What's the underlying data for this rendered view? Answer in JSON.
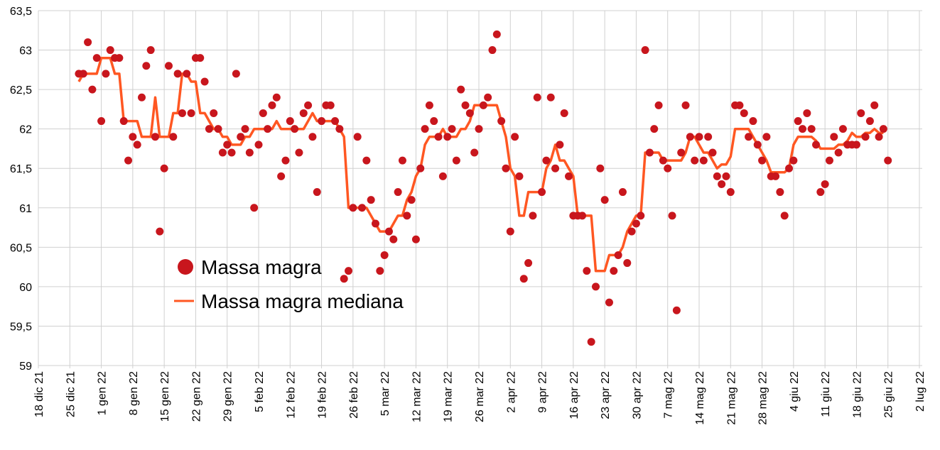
{
  "chart_data": {
    "type": "scatter",
    "title": "",
    "xlabel": "",
    "ylabel": "",
    "x_unit": "days since 18 dic 21",
    "xlim": [
      0,
      196
    ],
    "ylim": [
      59,
      63.5
    ],
    "grid": true,
    "legend_placement": "center-left",
    "y_ticks": [
      "59",
      "59,5",
      "60",
      "60,5",
      "61",
      "61,5",
      "62",
      "62,5",
      "63",
      "63,5"
    ],
    "y_tick_values": [
      59,
      59.5,
      60,
      60.5,
      61,
      61.5,
      62,
      62.5,
      63,
      63.5
    ],
    "x_ticks": [
      "18 dic 21",
      "25 dic 21",
      "1 gen 22",
      "8 gen 22",
      "15 gen 22",
      "22 gen 22",
      "29 gen 22",
      "5 feb 22",
      "12 feb 22",
      "19 feb 22",
      "26 feb 22",
      "5 mar 22",
      "12 mar 22",
      "19 mar 22",
      "26 mar 22",
      "2 apr 22",
      "9 apr 22",
      "16 apr 22",
      "23 apr 22",
      "30 apr 22",
      "7 mag 22",
      "14 mag 22",
      "21 mag 22",
      "28 mag 22",
      "4 giu 22",
      "11 giu 22",
      "18 giu 22",
      "25 giu 22",
      "2 lug 22"
    ],
    "x_tick_step_days": 7,
    "first_day": 9,
    "series": [
      {
        "name": "Massa magra",
        "kind": "points",
        "color": "#c8161d",
        "values": [
          62.7,
          62.7,
          63.1,
          62.5,
          62.9,
          62.1,
          62.7,
          63.0,
          62.9,
          62.9,
          62.1,
          61.6,
          61.9,
          61.8,
          62.4,
          62.8,
          63.0,
          61.9,
          60.7,
          61.5,
          62.8,
          61.9,
          62.7,
          62.2,
          62.7,
          62.2,
          62.9,
          62.9,
          62.6,
          62.0,
          62.2,
          62.0,
          61.7,
          61.8,
          61.7,
          62.7,
          61.9,
          62.0,
          61.7,
          61.0,
          61.8,
          62.2,
          62.0,
          62.3,
          62.4,
          61.4,
          61.6,
          62.1,
          62.0,
          61.7,
          62.2,
          62.3,
          61.9,
          61.2,
          62.1,
          62.3,
          62.3,
          62.1,
          62.0,
          60.1,
          60.2,
          61.0,
          61.9,
          61.0,
          61.6,
          61.1,
          60.8,
          60.2,
          60.4,
          60.7,
          60.6,
          61.2,
          61.6,
          60.9,
          61.1,
          60.6,
          61.5,
          62.0,
          62.3,
          62.1,
          61.9,
          61.4,
          61.9,
          62.0,
          61.6,
          62.5,
          62.3,
          62.2,
          61.7,
          62.0,
          62.3,
          62.4,
          63.0,
          63.2,
          62.1,
          61.5,
          60.7,
          61.9,
          61.4,
          60.1,
          60.3,
          60.9,
          62.4,
          61.2,
          61.6,
          62.4,
          61.5,
          61.8,
          62.2,
          61.4,
          60.9,
          60.9,
          60.9,
          60.2,
          59.3,
          60.0,
          61.5,
          61.1,
          59.8,
          60.2,
          60.4,
          61.2,
          60.3,
          60.7,
          60.8,
          60.9,
          63.0,
          61.7,
          62.0,
          62.3,
          61.6,
          61.5,
          60.9,
          59.7,
          61.7,
          62.3,
          61.9,
          61.6,
          61.9,
          61.6,
          61.9,
          61.7,
          61.4,
          61.3,
          61.4,
          61.2,
          62.3,
          62.3,
          62.2,
          61.9,
          62.1,
          61.8,
          61.6,
          61.9,
          61.4,
          61.4,
          61.2,
          60.9,
          61.5,
          61.6,
          62.1,
          62.0,
          62.2,
          62.0,
          61.8,
          61.2,
          61.3,
          61.6,
          61.9,
          61.7,
          62.0,
          61.8,
          61.8,
          61.8,
          62.2,
          61.9,
          62.1,
          62.3,
          61.9,
          62.0,
          61.6
        ]
      },
      {
        "name": "Massa magra mediana",
        "kind": "line",
        "color": "#ff5722",
        "values": [
          62.6,
          62.7,
          62.7,
          62.7,
          62.7,
          62.9,
          62.9,
          62.9,
          62.7,
          62.7,
          62.1,
          62.1,
          62.1,
          62.1,
          61.9,
          61.9,
          61.9,
          62.4,
          61.9,
          61.9,
          61.9,
          62.2,
          62.2,
          62.7,
          62.7,
          62.6,
          62.6,
          62.2,
          62.2,
          62.1,
          62.0,
          62.0,
          61.9,
          61.9,
          61.8,
          61.8,
          61.8,
          61.9,
          61.9,
          62.0,
          62.0,
          62.0,
          62.0,
          62.0,
          62.1,
          62.0,
          62.0,
          62.0,
          62.0,
          62.0,
          62.0,
          62.1,
          62.2,
          62.1,
          62.1,
          62.1,
          62.1,
          62.1,
          62.0,
          61.9,
          61.0,
          61.0,
          61.0,
          61.0,
          61.0,
          60.9,
          60.8,
          60.7,
          60.7,
          60.7,
          60.8,
          60.9,
          60.9,
          61.1,
          61.2,
          61.4,
          61.5,
          61.8,
          61.9,
          61.9,
          61.9,
          62.0,
          61.9,
          61.9,
          61.9,
          62.0,
          62.0,
          62.1,
          62.3,
          62.3,
          62.3,
          62.3,
          62.3,
          62.3,
          62.1,
          61.9,
          61.5,
          61.4,
          60.9,
          60.9,
          61.2,
          61.2,
          61.2,
          61.2,
          61.5,
          61.6,
          61.8,
          61.6,
          61.6,
          61.5,
          61.4,
          60.9,
          60.9,
          60.9,
          60.9,
          60.2,
          60.2,
          60.2,
          60.4,
          60.4,
          60.4,
          60.5,
          60.7,
          60.8,
          60.9,
          60.9,
          61.7,
          61.7,
          61.7,
          61.7,
          61.6,
          61.6,
          61.6,
          61.6,
          61.6,
          61.7,
          61.9,
          61.9,
          61.8,
          61.7,
          61.7,
          61.6,
          61.5,
          61.55,
          61.55,
          61.65,
          62.0,
          62.0,
          62.0,
          62.0,
          61.9,
          61.8,
          61.7,
          61.6,
          61.45,
          61.45,
          61.45,
          61.45,
          61.5,
          61.8,
          61.9,
          61.9,
          61.9,
          61.9,
          61.85,
          61.75,
          61.75,
          61.75,
          61.75,
          61.8,
          61.8,
          61.85,
          61.95,
          61.9,
          61.9,
          61.95,
          61.95,
          62.0,
          61.95,
          61.95,
          null
        ]
      }
    ]
  },
  "legend": {
    "items": [
      "Massa magra",
      "Massa magra mediana"
    ]
  }
}
